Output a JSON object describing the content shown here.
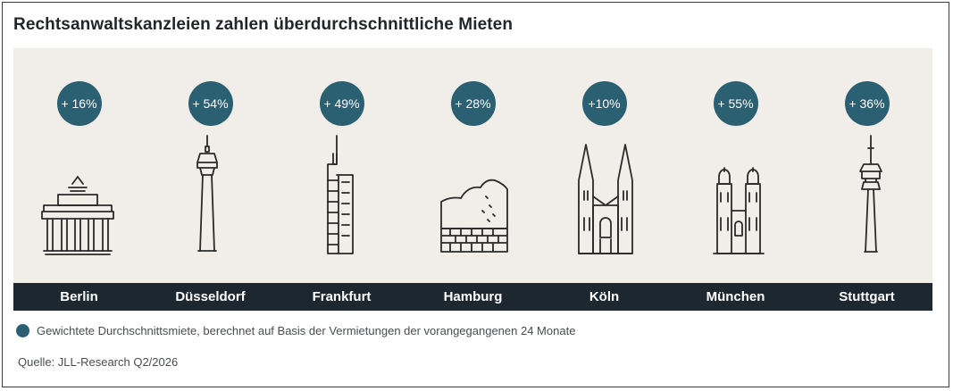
{
  "title": "Rechtsanwaltskanzleien zahlen überdurchschnittliche Mieten",
  "legend": {
    "label": "Gewichtete Durchschnittsmiete, berechnet auf Basis der Vermietungen der vorangegangenen 24 Monate",
    "color": "#2b5f72"
  },
  "source": "Quelle: JLL-Research Q2/2026",
  "colors": {
    "bubble": "#2b5f72",
    "band": "#1c2730",
    "panel": "#f1ede8",
    "icon": "#2a2a2a"
  },
  "chart_data": {
    "type": "table",
    "categories": [
      "Berlin",
      "Düsseldorf",
      "Frankfurt",
      "Hamburg",
      "Köln",
      "München",
      "Stuttgart"
    ],
    "values": [
      16,
      54,
      49,
      28,
      10,
      55,
      36
    ],
    "labels": [
      "+ 16%",
      "+ 54%",
      "+ 49%",
      "+ 28%",
      "+10%",
      "+ 55%",
      "+ 36%"
    ],
    "icons": [
      "brandenburg-gate-icon",
      "rheinturm-icon",
      "commerzbank-tower-icon",
      "elbphilharmonie-icon",
      "cologne-cathedral-icon",
      "frauenkirche-icon",
      "fernsehturm-icon"
    ]
  }
}
